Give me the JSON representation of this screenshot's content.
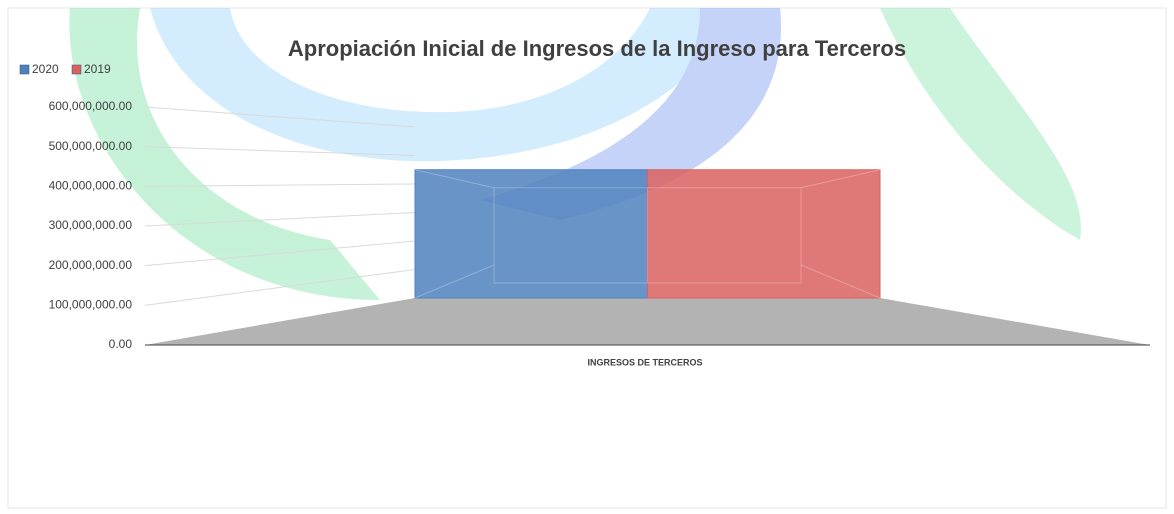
{
  "chart_data": {
    "type": "bar3d",
    "title": "Apropiación Inicial de Ingresos de la Ingreso para Terceros",
    "categories": [
      "INGRESOS DE TERCEROS"
    ],
    "series": [
      {
        "name": "2020",
        "color": "#4f81bd",
        "values": [
          450000000
        ]
      },
      {
        "name": "2019",
        "color": "#d9625f",
        "values": [
          450000000
        ]
      }
    ],
    "ylim": [
      0,
      600000000
    ],
    "yticks": [
      {
        "value": 0,
        "label": "0.00"
      },
      {
        "value": 100000000,
        "label": "100,000,000.00"
      },
      {
        "value": 200000000,
        "label": "200,000,000.00"
      },
      {
        "value": 300000000,
        "label": "300,000,000.00"
      },
      {
        "value": 400000000,
        "label": "400,000,000.00"
      },
      {
        "value": 500000000,
        "label": "500,000,000.00"
      },
      {
        "value": 600000000,
        "label": "600,000,000.00"
      }
    ],
    "grid": true,
    "legend": "top-left"
  }
}
